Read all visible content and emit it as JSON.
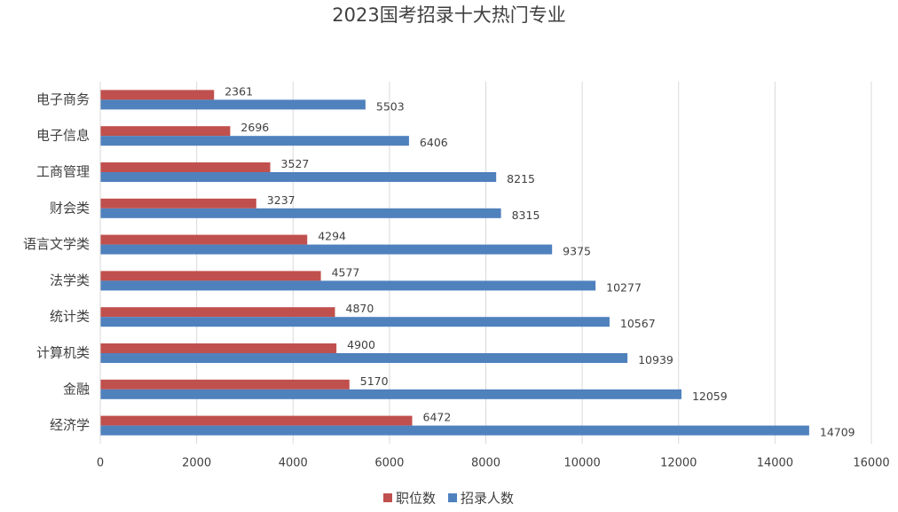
{
  "chart_data": {
    "type": "hbar",
    "title": "2023国考招录十大热门专业",
    "categories": [
      "电子商务",
      "电子信息",
      "工商管理",
      "财会类",
      "语言文学类",
      "法学类",
      "统计类",
      "计算机类",
      "金融",
      "经济学"
    ],
    "series": [
      {
        "name": "职位数",
        "color": "#c0504d",
        "values": [
          2361,
          2696,
          3527,
          3237,
          4294,
          4577,
          4870,
          4900,
          5170,
          6472
        ]
      },
      {
        "name": "招录人数",
        "color": "#4f81bd",
        "values": [
          5503,
          6406,
          8215,
          8315,
          9375,
          10277,
          10567,
          10939,
          12059,
          14709
        ]
      }
    ],
    "xlim": [
      0,
      16000
    ],
    "xticks": [
      0,
      2000,
      4000,
      6000,
      8000,
      10000,
      12000,
      14000,
      16000
    ],
    "grid": true,
    "legend": "bottom"
  }
}
